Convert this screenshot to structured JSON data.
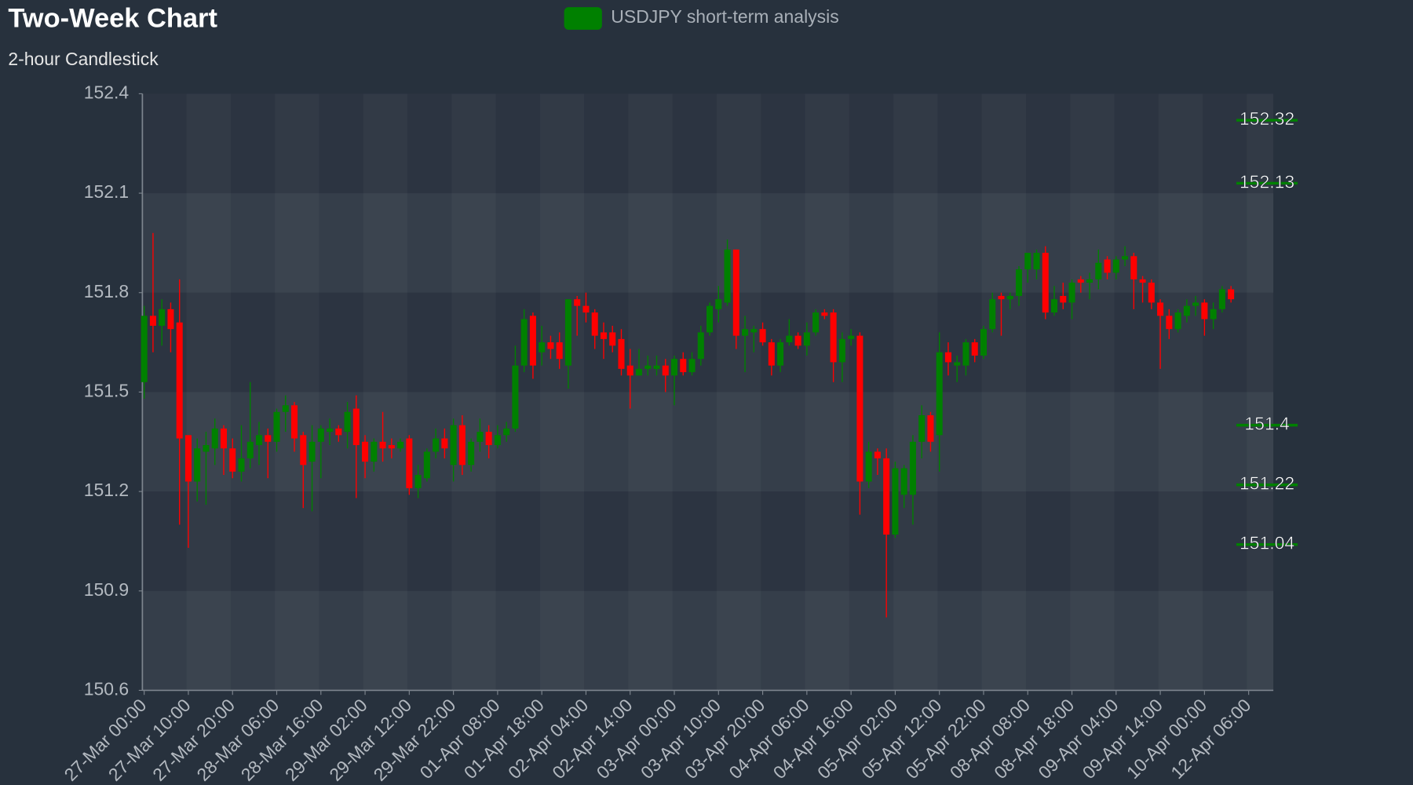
{
  "chart_data": {
    "type": "candlestick",
    "title": "Two-Week Chart",
    "subtitle": "2-hour Candlestick",
    "categories": [
      "27-Mar 00:00",
      null,
      null,
      null,
      null,
      "27-Mar 10:00",
      null,
      null,
      null,
      null,
      "27-Mar 20:00",
      null,
      null,
      null,
      null,
      "28-Mar 06:00",
      null,
      null,
      null,
      null,
      "28-Mar 16:00",
      null,
      null,
      null,
      null,
      "29-Mar 02:00",
      null,
      null,
      null,
      null,
      "29-Mar 12:00",
      null,
      null,
      null,
      null,
      "29-Mar 22:00",
      null,
      null,
      null,
      null,
      "01-Apr 08:00",
      null,
      null,
      null,
      null,
      "01-Apr 18:00",
      null,
      null,
      null,
      null,
      "02-Apr 04:00",
      null,
      null,
      null,
      null,
      "02-Apr 14:00",
      null,
      null,
      null,
      null,
      "03-Apr 00:00",
      null,
      null,
      null,
      null,
      "03-Apr 10:00",
      null,
      null,
      null,
      null,
      "03-Apr 20:00",
      null,
      null,
      null,
      null,
      "04-Apr 06:00",
      null,
      null,
      null,
      null,
      "04-Apr 16:00",
      null,
      null,
      null,
      null,
      "05-Apr 02:00",
      null,
      null,
      null,
      null,
      "05-Apr 12:00",
      null,
      null,
      null,
      null,
      "05-Apr 22:00",
      null,
      null,
      null,
      null,
      "08-Apr 08:00",
      null,
      null,
      null,
      null,
      "08-Apr 18:00",
      null,
      null,
      null,
      null,
      "09-Apr 04:00",
      null,
      null,
      null,
      null,
      "09-Apr 14:00",
      null,
      null,
      null,
      null,
      "10-Apr 00:00",
      null,
      null,
      null,
      null,
      "12-Apr 06:00"
    ],
    "series": [
      {
        "name": "USDJPY short-term analysis",
        "color": "#008000",
        "up_color": "#008000",
        "down_color": "#ff0000",
        "open": [
          151.53,
          151.73,
          151.7,
          151.75,
          151.71,
          151.37,
          151.23,
          151.32,
          151.33,
          151.39,
          151.33,
          151.26,
          151.3,
          151.34,
          151.37,
          151.35,
          151.44,
          151.46,
          151.37,
          151.29,
          151.35,
          151.38,
          151.39,
          151.38,
          151.45,
          151.35,
          151.29,
          151.35,
          151.34,
          151.33,
          151.36,
          151.21,
          151.24,
          151.32,
          151.36,
          151.28,
          151.4,
          151.28,
          151.35,
          151.38,
          151.34,
          151.37,
          151.39,
          151.58,
          151.73,
          151.62,
          151.65,
          151.65,
          151.58,
          151.78,
          151.76,
          151.74,
          151.68,
          151.68,
          151.66,
          151.58,
          151.55,
          151.57,
          151.57,
          151.58,
          151.55,
          151.6,
          151.56,
          151.6,
          151.68,
          151.75,
          151.77,
          151.93,
          151.67,
          151.68,
          151.69,
          151.65,
          151.58,
          151.65,
          151.67,
          151.64,
          151.68,
          151.74,
          151.74,
          151.59,
          151.66,
          151.67,
          151.23,
          151.32,
          151.3,
          151.07,
          151.19,
          151.19,
          151.35,
          151.43,
          151.37,
          151.62,
          151.58,
          151.58,
          151.65,
          151.61,
          151.69,
          151.79,
          151.78,
          151.79,
          151.87,
          151.87,
          151.92,
          151.74,
          151.79,
          151.77,
          151.84,
          151.83,
          151.84,
          151.9,
          151.86,
          151.9,
          151.91,
          151.84,
          151.83,
          151.77,
          151.73,
          151.69,
          151.73,
          151.76,
          151.77,
          151.72,
          151.75,
          151.81,
          null,
          null
        ],
        "high": [
          151.76,
          151.98,
          151.78,
          151.77,
          151.84,
          151.37,
          151.36,
          151.38,
          151.42,
          151.4,
          151.36,
          151.4,
          151.53,
          151.41,
          151.39,
          151.45,
          151.49,
          151.47,
          151.38,
          151.4,
          151.4,
          151.42,
          151.4,
          151.47,
          151.49,
          151.37,
          151.36,
          151.44,
          151.36,
          151.36,
          151.37,
          151.28,
          151.33,
          151.39,
          151.39,
          151.42,
          151.43,
          151.36,
          151.42,
          151.4,
          151.4,
          151.41,
          151.64,
          151.75,
          151.74,
          151.7,
          151.67,
          151.68,
          151.78,
          151.79,
          151.8,
          151.75,
          151.71,
          151.7,
          151.69,
          151.63,
          151.63,
          151.61,
          151.61,
          151.6,
          151.61,
          151.62,
          151.62,
          151.7,
          151.77,
          151.82,
          151.96,
          151.93,
          151.73,
          151.7,
          151.71,
          151.66,
          151.66,
          151.72,
          151.68,
          151.71,
          151.75,
          151.75,
          151.75,
          151.68,
          151.69,
          151.68,
          151.35,
          151.33,
          151.33,
          151.29,
          151.28,
          151.37,
          151.46,
          151.44,
          151.68,
          151.65,
          151.61,
          151.66,
          151.66,
          151.7,
          151.8,
          151.8,
          151.8,
          151.88,
          151.92,
          151.93,
          151.94,
          151.82,
          151.83,
          151.84,
          151.85,
          151.86,
          151.93,
          151.91,
          151.91,
          151.94,
          151.92,
          151.85,
          151.84,
          151.78,
          151.75,
          151.75,
          151.78,
          151.79,
          151.78,
          151.77,
          151.82,
          151.82,
          null,
          null
        ],
        "low": [
          151.48,
          151.62,
          151.64,
          151.62,
          151.1,
          151.03,
          151.17,
          151.16,
          151.28,
          151.25,
          151.24,
          151.23,
          151.27,
          151.28,
          151.24,
          151.32,
          151.38,
          151.32,
          151.15,
          151.14,
          151.24,
          151.34,
          151.35,
          151.33,
          151.18,
          151.24,
          151.26,
          151.29,
          151.3,
          151.32,
          151.19,
          151.18,
          151.23,
          151.3,
          151.3,
          151.23,
          151.25,
          151.26,
          151.32,
          151.3,
          151.33,
          151.35,
          151.38,
          151.56,
          151.54,
          151.58,
          151.6,
          151.57,
          151.51,
          151.67,
          151.71,
          151.63,
          151.6,
          151.62,
          151.55,
          151.45,
          151.55,
          151.55,
          151.55,
          151.5,
          151.46,
          151.55,
          151.55,
          151.58,
          151.67,
          151.71,
          151.76,
          151.63,
          151.56,
          151.62,
          151.64,
          151.55,
          151.56,
          151.64,
          151.63,
          151.61,
          151.67,
          151.72,
          151.53,
          151.53,
          151.64,
          151.13,
          151.21,
          151.25,
          150.82,
          151.06,
          151.15,
          151.1,
          151.3,
          151.32,
          151.26,
          151.55,
          151.53,
          151.55,
          151.59,
          151.6,
          151.68,
          151.67,
          151.75,
          151.76,
          151.83,
          151.84,
          151.72,
          151.73,
          151.75,
          151.72,
          151.8,
          151.78,
          151.81,
          151.84,
          151.84,
          151.88,
          151.75,
          151.77,
          151.75,
          151.57,
          151.66,
          151.68,
          151.71,
          151.73,
          151.67,
          151.69,
          151.74,
          151.77,
          null,
          null
        ],
        "close": [
          151.73,
          151.7,
          151.75,
          151.69,
          151.36,
          151.23,
          151.33,
          151.34,
          151.39,
          151.33,
          151.26,
          151.3,
          151.35,
          151.37,
          151.35,
          151.44,
          151.46,
          151.36,
          151.28,
          151.35,
          151.39,
          151.39,
          151.37,
          151.44,
          151.34,
          151.29,
          151.35,
          151.33,
          151.33,
          151.35,
          151.21,
          151.25,
          151.32,
          151.36,
          151.33,
          151.4,
          151.28,
          151.35,
          151.38,
          151.34,
          151.37,
          151.39,
          151.58,
          151.72,
          151.58,
          151.65,
          151.63,
          151.6,
          151.78,
          151.76,
          151.74,
          151.67,
          151.66,
          151.64,
          151.57,
          151.55,
          151.57,
          151.58,
          151.58,
          151.55,
          151.6,
          151.56,
          151.6,
          151.68,
          151.76,
          151.78,
          151.93,
          151.67,
          151.69,
          151.69,
          151.65,
          151.58,
          151.65,
          151.67,
          151.64,
          151.68,
          151.74,
          151.73,
          151.59,
          151.66,
          151.67,
          151.23,
          151.32,
          151.3,
          151.07,
          151.27,
          151.27,
          151.35,
          151.43,
          151.35,
          151.62,
          151.59,
          151.59,
          151.65,
          151.61,
          151.69,
          151.78,
          151.78,
          151.79,
          151.87,
          151.92,
          151.92,
          151.74,
          151.78,
          151.77,
          151.83,
          151.83,
          151.84,
          151.89,
          151.86,
          151.9,
          151.91,
          151.84,
          151.83,
          151.77,
          151.73,
          151.69,
          151.74,
          151.76,
          151.77,
          151.72,
          151.75,
          151.81,
          151.78,
          null,
          null
        ]
      }
    ],
    "levels": [
      152.32,
      152.13,
      151.4,
      151.22,
      151.04
    ],
    "level_color": "#008000",
    "ylim": [
      150.6,
      152.4
    ],
    "yticks": [
      150.6,
      150.9,
      151.2,
      151.5,
      151.8,
      152.1,
      152.4
    ],
    "grid": true
  }
}
